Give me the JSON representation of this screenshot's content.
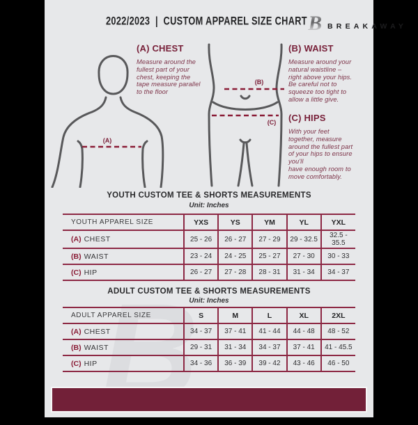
{
  "header": {
    "year": "2022/2023",
    "separator": "|",
    "title": "CUSTOM APPAREL SIZE CHART",
    "brand": "BREAKAWAY"
  },
  "colors": {
    "background": "#E7E8EA",
    "maroon_heading": "#771F38",
    "maroon_footer": "#722038",
    "table_border": "#8C2743",
    "dashed_line": "#8A1C36",
    "figure_stroke": "#58585A",
    "text_dark": "#29292B"
  },
  "guide": {
    "sections": [
      {
        "heading": "(A) CHEST",
        "body": "Measure around the\nfullest part of your\nchest, keeping the\ntape measure parallel\nto the floor"
      },
      {
        "heading": "(B) WAIST",
        "body": "Measure around your\nnatural waistline –\nright above your hips.\nBe careful not to\nsqueeze too tight to\nallow a little give."
      },
      {
        "heading": "(C) HIPS",
        "body": "With your feet\ntogether, measure\naround the fullest part\nof your hips to ensure\nyou'll\nhave enough room to\nmove comfortably."
      }
    ],
    "figure_labels": {
      "chest": "(A)",
      "waist": "(B)",
      "hips": "(C)"
    }
  },
  "tables": [
    {
      "title": "YOUTH CUSTOM TEE & SHORTS MEASUREMENTS",
      "unit": "Unit: Inches",
      "corner_label": "YOUTH APPAREL SIZE",
      "sizes": [
        "YXS",
        "YS",
        "YM",
        "YL",
        "YXL"
      ],
      "rows": [
        {
          "prefix": "(A)",
          "label": "CHEST",
          "values": [
            "25 - 26",
            "26 - 27",
            "27 - 29",
            "29 - 32.5",
            "32.5 - 35.5"
          ]
        },
        {
          "prefix": "(B)",
          "label": "WAIST",
          "values": [
            "23 - 24",
            "24 - 25",
            "25 - 27",
            "27 - 30",
            "30 - 33"
          ]
        },
        {
          "prefix": "(C)",
          "label": "HIP",
          "values": [
            "26 - 27",
            "27 - 28",
            "28 - 31",
            "31 - 34",
            "34 - 37"
          ]
        }
      ]
    },
    {
      "title": "ADULT CUSTOM TEE & SHORTS MEASUREMENTS",
      "unit": "Unit: Inches",
      "corner_label": "ADULT APPAREL SIZE",
      "sizes": [
        "S",
        "M",
        "L",
        "XL",
        "2XL"
      ],
      "rows": [
        {
          "prefix": "(A)",
          "label": "CHEST",
          "values": [
            "34 - 37",
            "37 - 41",
            "41 - 44",
            "44 - 48",
            "48 - 52"
          ]
        },
        {
          "prefix": "(B)",
          "label": "WAIST",
          "values": [
            "29 - 31",
            "31 - 34",
            "34 - 37",
            "37 - 41",
            "41 - 45.5"
          ]
        },
        {
          "prefix": "(C)",
          "label": "HIP",
          "values": [
            "34 - 36",
            "36 - 39",
            "39 - 42",
            "43 - 46",
            "46 - 50"
          ]
        }
      ]
    }
  ],
  "watermark": "B"
}
